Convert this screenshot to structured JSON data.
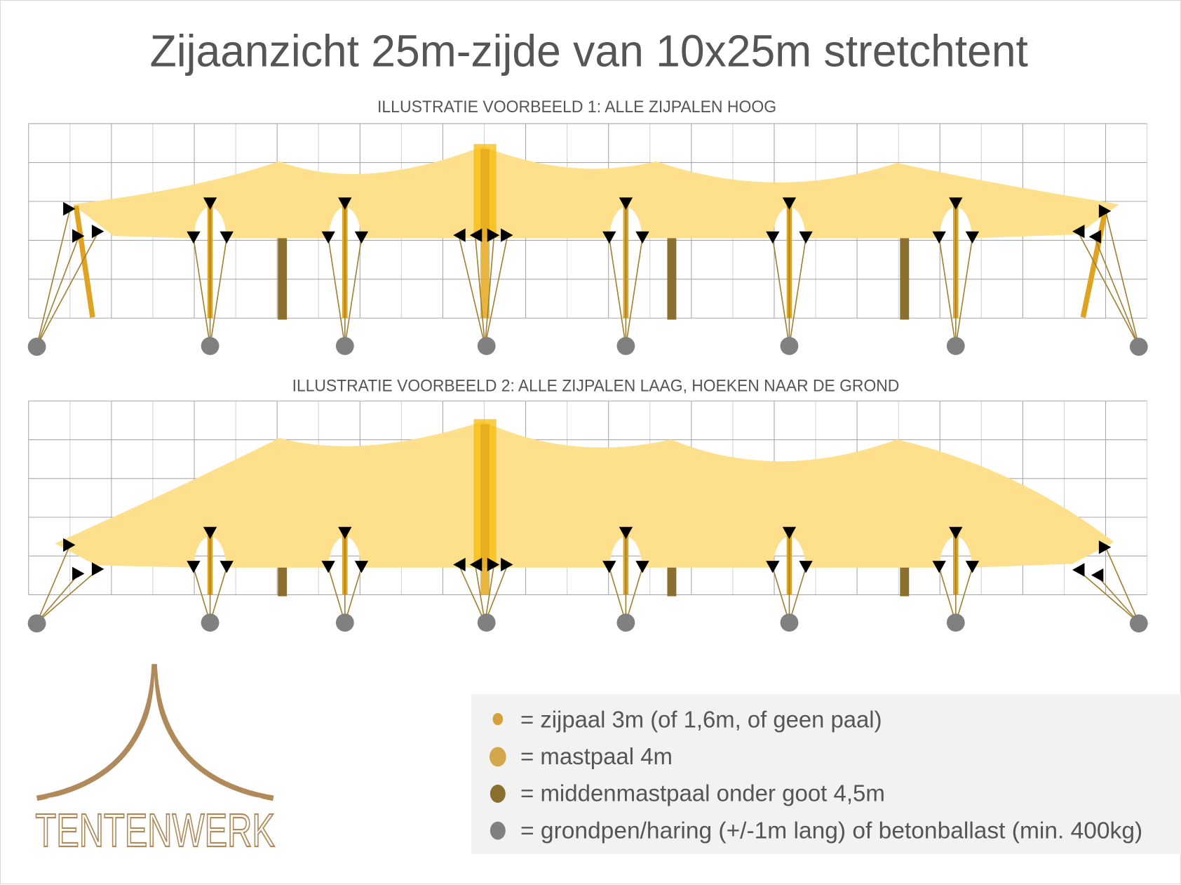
{
  "title": "Zijaanzicht 25m-zijde van 10x25m stretchtent",
  "diagrams": [
    {
      "subtitle": "ILLUSTRATIE VOORBEELD 1: ALLE ZIJPALEN HOOG"
    },
    {
      "subtitle": "ILLUSTRATIE VOORBEELD 2: ALLE ZIJPALEN LAAG, HOEKEN NAAR DE GROND"
    }
  ],
  "legend": {
    "items": [
      {
        "label": "= zijpaal 3m (of 1,6m, of geen paal)",
        "color": "#D4A23C",
        "icon": "small-dot"
      },
      {
        "label": "= mastpaal 4m",
        "color": "#D4A84A",
        "icon": "large-dot"
      },
      {
        "label": "= middenmastpaal onder goot 4,5m",
        "color": "#8B6F2E",
        "icon": "dot"
      },
      {
        "label": "= grondpen/haring (+/-1m lang) of betonballast (min. 400kg)",
        "color": "#808080",
        "icon": "dot"
      }
    ]
  },
  "logo": {
    "text": "TENTENWERK",
    "color": "#B08A5A"
  },
  "colors": {
    "canvas": "#FDDF8C",
    "side_pole": "#DDA321",
    "mast": "#F5B800",
    "middle_mast": "#8B6F2E",
    "guy_line": "#A08030",
    "anchor": "#808080"
  }
}
